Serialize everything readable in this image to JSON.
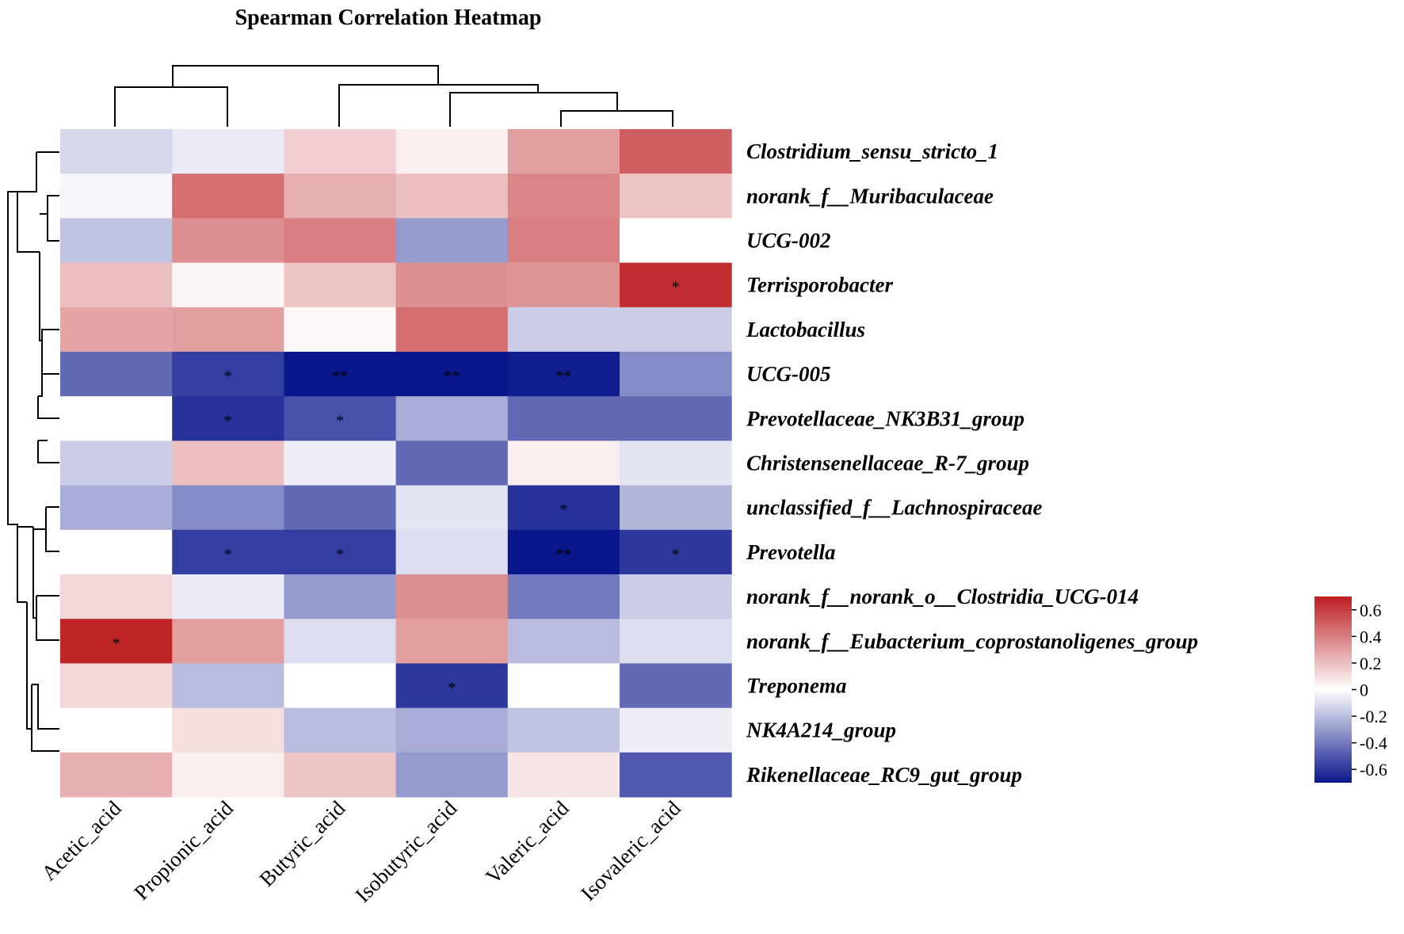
{
  "chart_data": {
    "type": "heatmap",
    "title": "Spearman Correlation Heatmap",
    "columns": [
      "Acetic_acid",
      "Propionic_acid",
      "Butyric_acid",
      "Isobutyric_acid",
      "Valeric_acid",
      "Isovaleric_acid"
    ],
    "rows": [
      "Clostridium_sensu_stricto_1",
      "norank_f__Muribaculaceae",
      "UCG-002",
      "Terrisporobacter",
      "Lactobacillus",
      "UCG-005",
      "Prevotellaceae_NK3B31_group",
      "Christensenellaceae_R-7_group",
      "unclassified_f__Lachnospiraceae",
      "Prevotella",
      "norank_f__norank_o__Clostridia_UCG-014",
      "norank_f__Eubacterium_coprostanoligenes_group",
      "Treponema",
      "NK4A214_group",
      "Rikenellaceae_RC9_gut_group"
    ],
    "values": [
      [
        -0.12,
        -0.06,
        0.15,
        0.05,
        0.3,
        0.5
      ],
      [
        -0.03,
        0.45,
        0.25,
        0.2,
        0.38,
        0.18
      ],
      [
        -0.18,
        0.35,
        0.4,
        -0.3,
        0.4,
        0.0
      ],
      [
        0.2,
        0.03,
        0.18,
        0.35,
        0.33,
        0.65
      ],
      [
        0.28,
        0.3,
        0.02,
        0.45,
        -0.15,
        -0.15
      ],
      [
        -0.45,
        -0.58,
        -0.72,
        -0.75,
        -0.68,
        -0.35
      ],
      [
        0.0,
        -0.62,
        -0.52,
        -0.25,
        -0.45,
        -0.45
      ],
      [
        -0.15,
        0.2,
        -0.05,
        -0.45,
        0.05,
        -0.08
      ],
      [
        -0.25,
        -0.35,
        -0.45,
        -0.08,
        -0.62,
        -0.22
      ],
      [
        0.0,
        -0.58,
        -0.58,
        -0.1,
        -0.75,
        -0.6
      ],
      [
        0.12,
        -0.06,
        -0.3,
        0.35,
        -0.4,
        -0.15
      ],
      [
        0.68,
        0.3,
        -0.1,
        0.3,
        -0.2,
        -0.1
      ],
      [
        0.12,
        -0.2,
        0.0,
        -0.6,
        0.0,
        -0.45
      ],
      [
        0.0,
        0.1,
        -0.2,
        -0.25,
        -0.18,
        -0.05
      ],
      [
        0.25,
        0.05,
        0.18,
        -0.3,
        0.08,
        -0.5
      ]
    ],
    "significance": [
      [
        "",
        "",
        "",
        "",
        "",
        ""
      ],
      [
        "",
        "",
        "",
        "",
        "",
        ""
      ],
      [
        "",
        "",
        "",
        "",
        "",
        ""
      ],
      [
        "",
        "",
        "",
        "",
        "",
        "*"
      ],
      [
        "",
        "",
        "",
        "",
        "",
        ""
      ],
      [
        "",
        "*",
        "**",
        "**",
        "**",
        ""
      ],
      [
        "",
        "*",
        "*",
        "",
        "",
        ""
      ],
      [
        "",
        "",
        "",
        "",
        "",
        ""
      ],
      [
        "",
        "",
        "",
        "",
        "*",
        ""
      ],
      [
        "",
        "*",
        "*",
        "",
        "**",
        "*"
      ],
      [
        "",
        "",
        "",
        "",
        "",
        ""
      ],
      [
        "*",
        "",
        "",
        "",
        "",
        ""
      ],
      [
        "",
        "",
        "",
        "*",
        "",
        ""
      ],
      [
        "",
        "",
        "",
        "",
        "",
        ""
      ],
      [
        "",
        "",
        "",
        "",
        "",
        ""
      ]
    ],
    "color_scale": {
      "min": -0.7,
      "max": 0.7,
      "low_color": "#0a168c",
      "mid_color": "#ffffff",
      "high_color": "#bc1e22",
      "ticks": [
        "0.6",
        "0.4",
        "0.2",
        "0",
        "-0.2",
        "-0.4",
        "-0.6"
      ],
      "tick_values": [
        0.6,
        0.4,
        0.2,
        0,
        -0.2,
        -0.4,
        -0.6
      ]
    },
    "legend_position": "right"
  }
}
